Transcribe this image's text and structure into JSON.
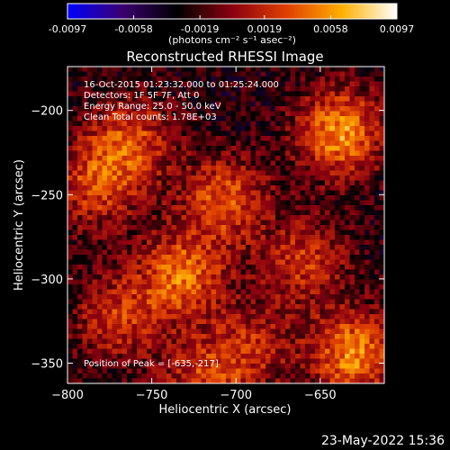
{
  "chart_data": {
    "type": "heatmap",
    "title": "Reconstructed RHESSI Image",
    "xlabel": "Heliocentric X (arcsec)",
    "ylabel": "Heliocentric Y (arcsec)",
    "xlim": [
      -800,
      -612
    ],
    "ylim": [
      -362,
      -174
    ],
    "x_ticks": [
      -800,
      -750,
      -700,
      -650
    ],
    "y_ticks": [
      -200,
      -250,
      -300,
      -350
    ],
    "colorbar": {
      "range": [
        -0.0097,
        0.0097
      ],
      "tick_values": [
        -0.0097,
        -0.0058,
        -0.0019,
        0.0019,
        0.0058,
        0.0097
      ],
      "tick_labels": [
        "-0.0097",
        "-0.0058",
        "-0.0019",
        "0.0019",
        "0.0058",
        "0.0097"
      ],
      "unit_label": "(photons cm⁻² s⁻¹ asec⁻²)",
      "colormap_stops": [
        "#0000ff",
        "#3a0070",
        "#000000",
        "#8a0010",
        "#e04000",
        "#ffb000",
        "#ffffff"
      ]
    },
    "sources": [
      {
        "x": -707,
        "y": -253,
        "strength": 0.75
      },
      {
        "x": -732,
        "y": -298,
        "strength": 0.85
      },
      {
        "x": -638,
        "y": -213,
        "strength": 1.0
      },
      {
        "x": -763,
        "y": -218,
        "strength": 0.7
      },
      {
        "x": -770,
        "y": -323,
        "strength": 0.6
      },
      {
        "x": -783,
        "y": -245,
        "strength": 0.65
      },
      {
        "x": -660,
        "y": -290,
        "strength": 0.6
      },
      {
        "x": -630,
        "y": -345,
        "strength": 0.95
      },
      {
        "x": -720,
        "y": -360,
        "strength": 0.6
      },
      {
        "x": -690,
        "y": -340,
        "strength": 0.5
      }
    ],
    "annotations": [
      "16-Oct-2015 01:23:32.000 to 01:25:24.000",
      "Detectors: 1F 5F 7F, Att 0",
      "Energy Range: 25.0 - 50.0 keV",
      "Clean     Total counts: 1.78E+03",
      "Position of Peak = [-635,-217]"
    ]
  },
  "footer": {
    "timestamp": "23-May-2022 15:36"
  }
}
